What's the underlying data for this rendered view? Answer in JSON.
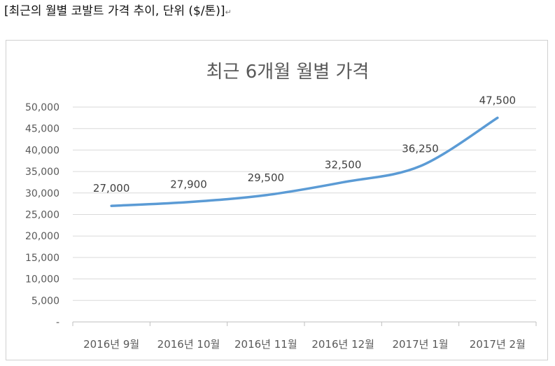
{
  "caption": {
    "text": "[최근의 월별 코발트 가격 추이, 단위 ($/톤)]",
    "mark": "↵"
  },
  "chart_data": {
    "type": "line",
    "title": "최근 6개월 월별 가격",
    "categories": [
      "2016년 9월",
      "2016년 10월",
      "2016년 11월",
      "2016년 12월",
      "2017년 1월",
      "2017년 2월"
    ],
    "series": [
      {
        "values": [
          27000,
          27900,
          29500,
          32500,
          36250,
          47500
        ],
        "data_labels": [
          "27,000",
          "27,900",
          "29,500",
          "32,500",
          "36,250",
          "47,500"
        ],
        "color": "#5b9bd5"
      }
    ],
    "y_ticks": [
      0,
      5000,
      10000,
      15000,
      20000,
      25000,
      30000,
      35000,
      40000,
      45000,
      50000
    ],
    "y_tick_labels": [
      "-",
      "5,000",
      "10,000",
      "15,000",
      "20,000",
      "25,000",
      "30,000",
      "35,000",
      "40,000",
      "45,000",
      "50,000"
    ],
    "ylim": [
      0,
      50000
    ],
    "xlabel": "",
    "ylabel": "",
    "grid": true,
    "legend": "none"
  }
}
